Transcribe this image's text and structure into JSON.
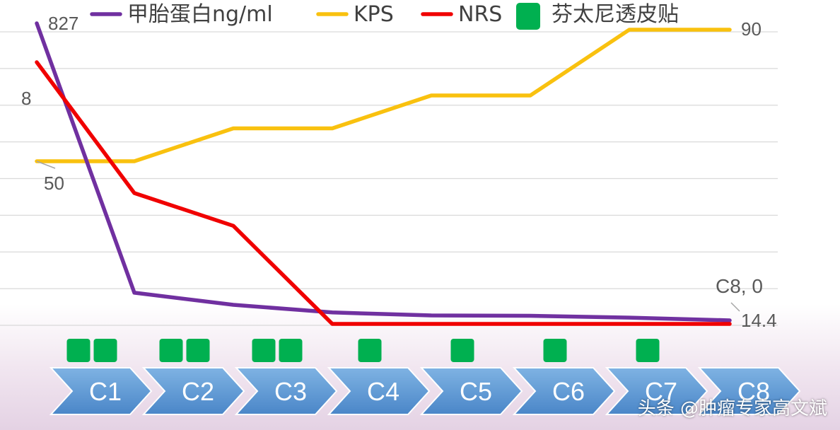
{
  "chart_data": {
    "type": "line",
    "categories": [
      "C1",
      "C2",
      "C3",
      "C4",
      "C5",
      "C6",
      "C7",
      "C8"
    ],
    "series": [
      {
        "name": "甲胎蛋白ng/ml",
        "color": "#7030a0",
        "values": [
          827,
          90,
          57,
          36,
          28,
          27,
          22,
          14.4
        ],
        "value_labels": {
          "first": "827",
          "last": "14.4"
        }
      },
      {
        "name": "KPS",
        "color": "#f9c10f",
        "values": [
          50,
          50,
          60,
          60,
          70,
          70,
          90,
          90
        ],
        "value_labels": {
          "first": "50",
          "last": "90"
        }
      },
      {
        "name": "NRS",
        "color": "#f00000",
        "values": [
          8,
          4,
          3,
          0,
          0,
          0,
          0,
          0
        ],
        "value_labels": {
          "first": "8",
          "last": "C8, 0"
        }
      }
    ],
    "markers": {
      "name": "芬太尼透皮贴",
      "color": "#00b050",
      "counts": [
        2,
        2,
        2,
        1,
        1,
        1,
        1,
        0
      ]
    },
    "legend_position": "top",
    "grid": true
  },
  "watermark": "头条 @肿瘤专家高文斌"
}
